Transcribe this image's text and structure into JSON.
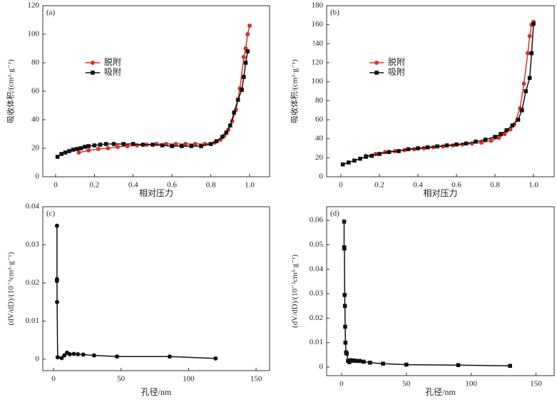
{
  "chart_data": [
    {
      "type": "line",
      "panel_label": "(a)",
      "xlabel": "相对压力",
      "ylabel": "吸收体积/(cm³·g⁻¹)",
      "xlim": [
        -0.066,
        1.103
      ],
      "xticks": [
        0,
        0.2,
        0.4,
        0.6,
        0.8,
        {
          "value": 1,
          "label": "1.0"
        }
      ],
      "ylim": [
        0,
        120
      ],
      "yticks": [
        0,
        20,
        40,
        60,
        80,
        100,
        120
      ],
      "legend": "center-left",
      "series": [
        {
          "name": "脱附",
          "color": "#d9312b",
          "marker": "circle",
          "x": [
            0.12,
            0.17,
            0.22,
            0.27,
            0.32,
            0.37,
            0.42,
            0.47,
            0.52,
            0.57,
            0.62,
            0.67,
            0.72,
            0.77,
            0.82,
            0.85,
            0.87,
            0.89,
            0.91,
            0.93,
            0.95,
            0.97,
            0.98,
            0.99,
            1.0
          ],
          "values": [
            17,
            18.5,
            19.5,
            20,
            21,
            21.5,
            22,
            22.5,
            23,
            23,
            23,
            23,
            23,
            23,
            24,
            26,
            29,
            33,
            39,
            47,
            62,
            84,
            90,
            100,
            106
          ]
        },
        {
          "name": "吸附",
          "color": "#111111",
          "marker": "square",
          "x": [
            0.01,
            0.03,
            0.05,
            0.07,
            0.09,
            0.11,
            0.13,
            0.15,
            0.17,
            0.2,
            0.23,
            0.26,
            0.3,
            0.35,
            0.4,
            0.45,
            0.5,
            0.55,
            0.6,
            0.65,
            0.7,
            0.75,
            0.8,
            0.83,
            0.86,
            0.88,
            0.9,
            0.92,
            0.94,
            0.96,
            0.97,
            0.98,
            0.99
          ],
          "values": [
            14,
            16,
            17,
            18,
            19,
            19.5,
            20,
            21,
            21.5,
            22,
            22.5,
            23,
            23,
            23,
            23,
            22.5,
            22.5,
            22,
            21.5,
            21.5,
            21.5,
            21.5,
            23,
            25,
            28,
            31,
            36,
            45,
            54,
            61,
            70,
            80,
            88
          ]
        }
      ]
    },
    {
      "type": "line",
      "panel_label": "(b)",
      "xlabel": "相对压力",
      "ylabel": "吸收体积/(cm³·g⁻¹)",
      "xlim": [
        -0.074,
        1.107
      ],
      "xticks": [
        0,
        0.2,
        0.4,
        0.6,
        0.8,
        {
          "value": 1,
          "label": "1.0"
        }
      ],
      "ylim": [
        0,
        180
      ],
      "yticks": [
        0,
        20,
        40,
        60,
        80,
        100,
        120,
        {
          "value": 140,
          "label": "!40"
        },
        160,
        180
      ],
      "legend": "center-left",
      "series": [
        {
          "name": "脱附",
          "color": "#d9312b",
          "marker": "circle",
          "x": [
            0.13,
            0.18,
            0.23,
            0.28,
            0.33,
            0.38,
            0.43,
            0.48,
            0.53,
            0.58,
            0.63,
            0.68,
            0.73,
            0.78,
            0.82,
            0.85,
            0.88,
            0.9,
            0.93,
            0.95,
            0.97,
            0.98,
            0.99,
            1.0
          ],
          "values": [
            22,
            24,
            26,
            27,
            28,
            29,
            30,
            31,
            32,
            33,
            34,
            35,
            36,
            38,
            41,
            45,
            50,
            55,
            72,
            98,
            130,
            148,
            160,
            163
          ]
        },
        {
          "name": "吸附",
          "color": "#111111",
          "marker": "square",
          "x": [
            0.01,
            0.04,
            0.07,
            0.1,
            0.13,
            0.16,
            0.2,
            0.25,
            0.3,
            0.35,
            0.4,
            0.45,
            0.5,
            0.55,
            0.6,
            0.65,
            0.7,
            0.75,
            0.8,
            0.83,
            0.86,
            0.89,
            0.92,
            0.94,
            0.96,
            0.98,
            0.99,
            1.0
          ],
          "values": [
            13,
            15,
            17,
            19,
            21,
            22,
            24,
            26,
            27,
            29,
            30,
            31,
            32,
            33,
            34,
            35,
            37,
            39,
            42,
            45,
            49,
            54,
            60,
            70,
            90,
            104,
            130,
            161
          ]
        }
      ]
    },
    {
      "type": "line",
      "panel_label": "(c)",
      "xlabel": "孔径/nm",
      "ylabel": "(dV/dD)/(10⁻²cm³·g⁻¹)",
      "xlim": [
        -8,
        160
      ],
      "xticks": [
        0,
        50,
        100,
        150
      ],
      "ylim": [
        -0.003,
        0.04
      ],
      "yticks": [
        0,
        0.01,
        0.02,
        0.03,
        0.04
      ],
      "series": [
        {
          "color": "#111111",
          "marker": "circle",
          "x": [
            2.5,
            2.5,
            2.5,
            2.6,
            3,
            6,
            8,
            10,
            12,
            15,
            18,
            22,
            30,
            47,
            86,
            120
          ],
          "values": [
            0.035,
            0.021,
            0.0205,
            0.015,
            0.0005,
            0.0003,
            0.001,
            0.0017,
            0.0013,
            0.0014,
            0.0013,
            0.0012,
            0.001,
            0.0007,
            0.0007,
            0.0002
          ]
        }
      ]
    },
    {
      "type": "line",
      "panel_label": "(d)",
      "xlabel": "孔径/nm",
      "ylabel": "(dV/dD)/(10⁻²cm³·g⁻¹)",
      "xlim": [
        -11.5,
        164
      ],
      "xticks": [
        0,
        50,
        100,
        150
      ],
      "ylim": [
        -0.0035,
        0.0656
      ],
      "yticks": [
        0,
        0.01,
        0.02,
        0.03,
        0.04,
        0.05,
        0.06
      ],
      "series": [
        {
          "color": "#111111",
          "marker": "square",
          "x": [
            2,
            2,
            2.2,
            2.4,
            2.6,
            2.8,
            3,
            3.5,
            4,
            5,
            6,
            7,
            8,
            9,
            10,
            12,
            14,
            17,
            22,
            32,
            50,
            90,
            130
          ],
          "values": [
            0.0595,
            0.049,
            0.0485,
            0.0295,
            0.025,
            0.0165,
            0.01,
            0.006,
            0.0055,
            0.0025,
            0.002,
            0.0028,
            0.0026,
            0.0027,
            0.0026,
            0.0025,
            0.0025,
            0.0022,
            0.0018,
            0.0014,
            0.001,
            0.0008,
            0.0005
          ]
        }
      ]
    }
  ]
}
